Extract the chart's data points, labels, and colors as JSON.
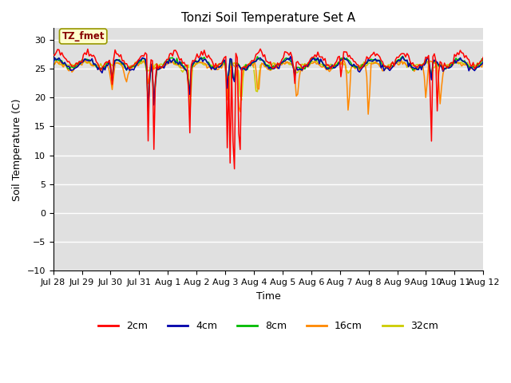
{
  "title": "Tonzi Soil Temperature Set A",
  "xlabel": "Time",
  "ylabel": "Soil Temperature (C)",
  "ylim": [
    -10,
    32
  ],
  "yticks": [
    -10,
    -5,
    0,
    5,
    10,
    15,
    20,
    25,
    30
  ],
  "legend_label": "TZ_fmet",
  "series_labels": [
    "2cm",
    "4cm",
    "8cm",
    "16cm",
    "32cm"
  ],
  "series_colors": [
    "#ff0000",
    "#0000aa",
    "#00bb00",
    "#ff8800",
    "#cccc00"
  ],
  "background_color": "#e0e0e0",
  "x_tick_labels": [
    "Jul 28",
    "Jul 29",
    "Jul 30",
    "Jul 31",
    "Aug 1",
    "Aug 2",
    "Aug 3",
    "Aug 4",
    "Aug 5",
    "Aug 6",
    "Aug 7",
    "Aug 8",
    "Aug 9",
    "Aug 10",
    "Aug 11",
    "Aug 12"
  ],
  "n_days": 15,
  "n_pts": 300,
  "figsize": [
    6.4,
    4.8
  ],
  "dpi": 100
}
